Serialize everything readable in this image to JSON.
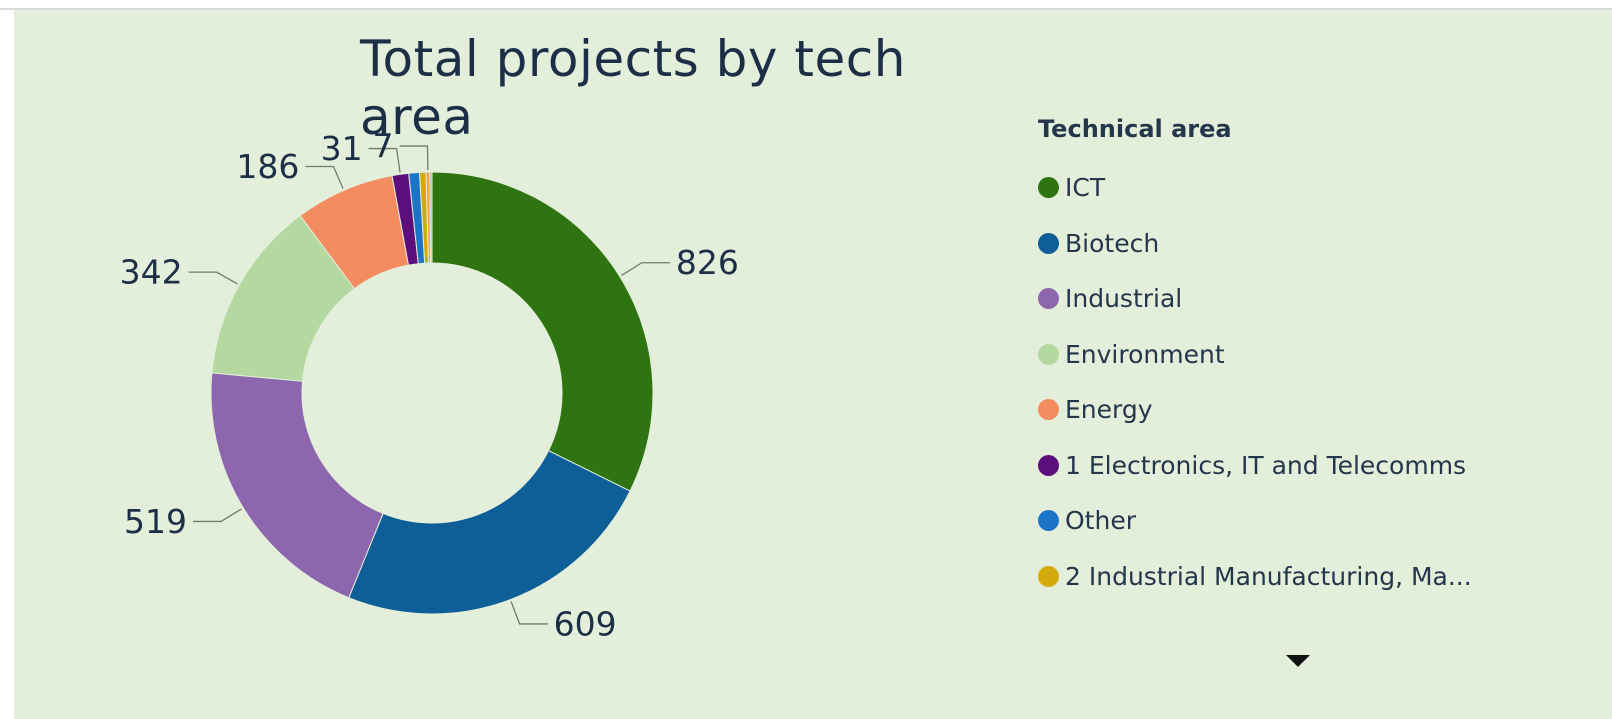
{
  "chart_data": {
    "type": "pie",
    "variant": "donut",
    "title": "Total projects by tech area",
    "legend_title": "Technical area",
    "legend_position": "right",
    "slices": [
      {
        "label": "ICT",
        "value": 826,
        "color": "#2e7410",
        "show_label": true
      },
      {
        "label": "Biotech",
        "value": 609,
        "color": "#0e5e98",
        "show_label": true
      },
      {
        "label": "Industrial",
        "value": 519,
        "color": "#8d66ae",
        "show_label": true
      },
      {
        "label": "Environment",
        "value": 342,
        "color": "#b3d8a0",
        "show_label": true
      },
      {
        "label": "Energy",
        "value": 186,
        "color": "#f48c60",
        "show_label": true
      },
      {
        "label": "1 Electronics, IT and Telecomms",
        "value": 31,
        "color": "#5c0f7c",
        "show_label": true
      },
      {
        "label": "Other",
        "value": 20,
        "color": "#1c74c8",
        "show_label": false
      },
      {
        "label": "2 Industrial Manufacturing, Ma...",
        "value": 12,
        "color": "#d4a90c",
        "show_label": false
      },
      {
        "label": "",
        "value": 7,
        "color": "#f2a24a",
        "show_label": true
      },
      {
        "label": "",
        "value": 4,
        "color": "#b3a6bd",
        "show_label": false
      }
    ]
  },
  "legend": {
    "items": [
      {
        "label": "ICT",
        "color": "#2e7410"
      },
      {
        "label": "Biotech",
        "color": "#0e5e98"
      },
      {
        "label": "Industrial",
        "color": "#8d66ae"
      },
      {
        "label": "Environment",
        "color": "#b3d8a0"
      },
      {
        "label": "Energy",
        "color": "#f48c60"
      },
      {
        "label": "1 Electronics, IT and Telecomms",
        "color": "#5c0f7c"
      },
      {
        "label": "Other",
        "color": "#1c74c8"
      },
      {
        "label": "2 Industrial Manufacturing, Ma...",
        "color": "#d4a90c"
      }
    ],
    "scroll_icon": "triangle-down"
  }
}
